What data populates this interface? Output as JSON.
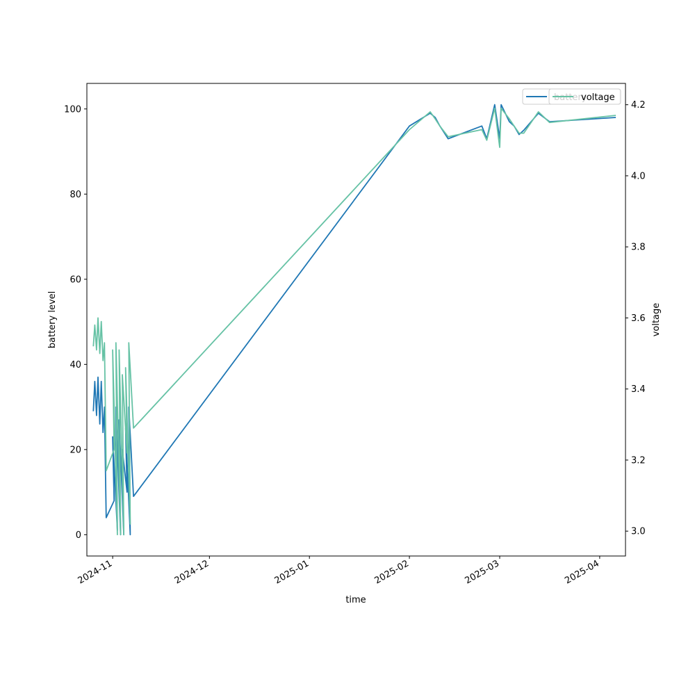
{
  "chart_data": {
    "type": "line",
    "title": "",
    "xlabel": "time",
    "ylabel_left": "battery level",
    "ylabel_right": "voltage",
    "x_ticks": [
      "2024-11",
      "2024-12",
      "2025-01",
      "2025-02",
      "2025-03",
      "2025-04"
    ],
    "xlim": [
      "2024-10-24",
      "2025-04-09"
    ],
    "y_left": {
      "lim": [
        -5,
        106
      ],
      "ticks": [
        "0",
        "20",
        "40",
        "60",
        "80",
        "100"
      ],
      "tick_values": [
        0,
        20,
        40,
        60,
        80,
        100
      ]
    },
    "y_right": {
      "lim": [
        2.93,
        4.26
      ],
      "ticks": [
        "3.0",
        "3.2",
        "3.4",
        "3.6",
        "3.8",
        "4.0",
        "4.2"
      ],
      "tick_values": [
        3.0,
        3.2,
        3.4,
        3.6,
        3.8,
        4.0,
        4.2
      ]
    },
    "grid": false,
    "legend": {
      "placement": "top-right",
      "labels": [
        "battery",
        "voltage"
      ]
    },
    "colors": {
      "battery": "#1f77b4",
      "voltage": "#66c2a5",
      "axes": "#000000"
    },
    "series": [
      {
        "name": "battery",
        "axis": "left",
        "points": [
          [
            "2024-10-26",
            29
          ],
          [
            "2024-10-26",
            36
          ],
          [
            "2024-10-27",
            28
          ],
          [
            "2024-10-27",
            37
          ],
          [
            "2024-10-28",
            26
          ],
          [
            "2024-10-28",
            36
          ],
          [
            "2024-10-29",
            24
          ],
          [
            "2024-10-29",
            30
          ],
          [
            "2024-10-30",
            4
          ],
          [
            "2024-11-01",
            8
          ],
          [
            "2024-11-01",
            23
          ],
          [
            "2024-11-02",
            1
          ],
          [
            "2024-11-02",
            30
          ],
          [
            "2024-11-03",
            0
          ],
          [
            "2024-11-03",
            27
          ],
          [
            "2024-11-04",
            0
          ],
          [
            "2024-11-04",
            20
          ],
          [
            "2024-11-05",
            10
          ],
          [
            "2024-11-05",
            25
          ],
          [
            "2024-11-06",
            0
          ],
          [
            "2024-11-06",
            30
          ],
          [
            "2024-11-07",
            9
          ],
          [
            "2025-02-01",
            96
          ],
          [
            "2025-02-07",
            99
          ],
          [
            "2025-02-09",
            98
          ],
          [
            "2025-02-10",
            96
          ],
          [
            "2025-02-13",
            93
          ],
          [
            "2025-02-23",
            96
          ],
          [
            "2025-02-25",
            93
          ],
          [
            "2025-02-27",
            101
          ],
          [
            "2025-02-29",
            93
          ],
          [
            "2025-03-01",
            101
          ],
          [
            "2025-03-04",
            97
          ],
          [
            "2025-03-05",
            96
          ],
          [
            "2025-03-07",
            94
          ],
          [
            "2025-03-08",
            95
          ],
          [
            "2025-03-13",
            99
          ],
          [
            "2025-03-16",
            97
          ],
          [
            "2025-04-06",
            98
          ]
        ]
      },
      {
        "name": "voltage",
        "axis": "right",
        "points": [
          [
            "2024-10-26",
            3.52
          ],
          [
            "2024-10-26",
            3.58
          ],
          [
            "2024-10-27",
            3.51
          ],
          [
            "2024-10-27",
            3.6
          ],
          [
            "2024-10-28",
            3.5
          ],
          [
            "2024-10-28",
            3.59
          ],
          [
            "2024-10-29",
            3.48
          ],
          [
            "2024-10-29",
            3.53
          ],
          [
            "2024-10-30",
            3.17
          ],
          [
            "2024-11-01",
            3.23
          ],
          [
            "2024-11-01",
            3.51
          ],
          [
            "2024-11-02",
            2.99
          ],
          [
            "2024-11-02",
            3.53
          ],
          [
            "2024-11-03",
            2.99
          ],
          [
            "2024-11-03",
            3.51
          ],
          [
            "2024-11-04",
            2.99
          ],
          [
            "2024-11-04",
            3.44
          ],
          [
            "2024-11-05",
            3.22
          ],
          [
            "2024-11-05",
            3.46
          ],
          [
            "2024-11-06",
            3.02
          ],
          [
            "2024-11-06",
            3.53
          ],
          [
            "2024-11-07",
            3.29
          ],
          [
            "2025-02-01",
            4.13
          ],
          [
            "2025-02-07",
            4.18
          ],
          [
            "2025-02-09",
            4.16
          ],
          [
            "2025-02-10",
            4.14
          ],
          [
            "2025-02-13",
            4.11
          ],
          [
            "2025-02-23",
            4.13
          ],
          [
            "2025-02-25",
            4.1
          ],
          [
            "2025-02-27",
            4.19
          ],
          [
            "2025-02-29",
            4.08
          ],
          [
            "2025-03-01",
            4.19
          ],
          [
            "2025-03-04",
            4.16
          ],
          [
            "2025-03-05",
            4.14
          ],
          [
            "2025-03-07",
            4.12
          ],
          [
            "2025-03-08",
            4.12
          ],
          [
            "2025-03-13",
            4.18
          ],
          [
            "2025-03-16",
            4.15
          ],
          [
            "2025-04-06",
            4.17
          ]
        ]
      }
    ]
  }
}
